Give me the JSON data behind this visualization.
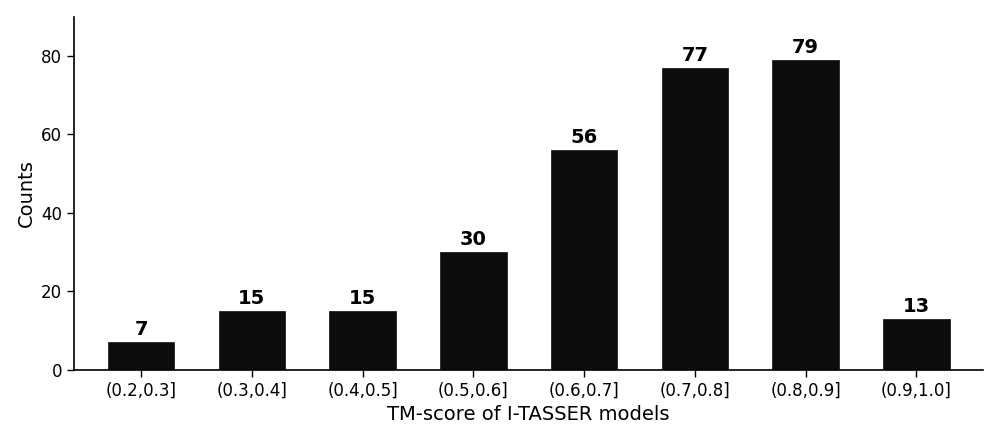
{
  "categories": [
    "(0.2,0.3]",
    "(0.3,0.4]",
    "(0.4,0.5]",
    "(0.5,0.6]",
    "(0.6,0.7]",
    "(0.7,0.8]",
    "(0.8,0.9]",
    "(0.9,1.0]"
  ],
  "values": [
    7,
    15,
    15,
    30,
    56,
    77,
    79,
    13
  ],
  "bar_color": "#0d0d0d",
  "bar_edge_color": "#0d0d0d",
  "xlabel": "TM-score of I-TASSER models",
  "ylabel": "Counts",
  "ylim": [
    0,
    90
  ],
  "yticks": [
    0,
    20,
    40,
    60,
    80
  ],
  "annotation_fontsize": 14,
  "xlabel_fontsize": 14,
  "ylabel_fontsize": 14,
  "tick_fontsize": 12,
  "background_color": "#ffffff",
  "bar_width": 0.6
}
